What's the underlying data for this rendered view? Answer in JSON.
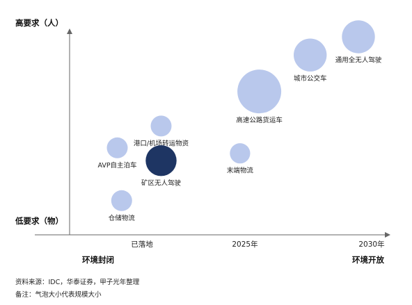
{
  "chart_data": {
    "type": "scatter",
    "title": "",
    "y_axis": {
      "top_label": "高要求（人）",
      "bottom_label": "低要求（物）"
    },
    "x_axis": {
      "ticks": [
        "已落地",
        "2025年",
        "2030年"
      ],
      "left_label": "环境封闭",
      "right_label": "环境开放"
    },
    "size_meaning": "气泡大小代表规模大小",
    "bubbles": [
      {
        "label": "仓储物流",
        "x": 0.3,
        "y": 1.0,
        "size": 1.0,
        "highlight": false
      },
      {
        "label": "AVP自主泊车",
        "x": 0.25,
        "y": 3.9,
        "size": 1.0,
        "highlight": false
      },
      {
        "label": "港口/机场转运物资",
        "x": 0.75,
        "y": 5.1,
        "size": 1.0,
        "highlight": false
      },
      {
        "label": "矿区无人驾驶",
        "x": 0.75,
        "y": 3.2,
        "size": 2.2,
        "highlight": true
      },
      {
        "label": "末端物流",
        "x": 1.65,
        "y": 3.6,
        "size": 0.95,
        "highlight": false
      },
      {
        "label": "高速公路货运车",
        "x": 1.87,
        "y": 7.0,
        "size": 4.4,
        "highlight": false
      },
      {
        "label": "城市公交车",
        "x": 2.45,
        "y": 9.0,
        "size": 2.5,
        "highlight": false
      },
      {
        "label": "通用全无人驾驶",
        "x": 3.0,
        "y": 10.0,
        "size": 2.5,
        "highlight": false
      }
    ],
    "colors": {
      "bubble": "#b9c8ec",
      "highlight": "#1e3563",
      "axis": "#666666"
    }
  },
  "footer": {
    "source": "资料来源：IDC，华泰证券，甲子光年整理",
    "note": "备注：气泡大小代表规模大小"
  }
}
